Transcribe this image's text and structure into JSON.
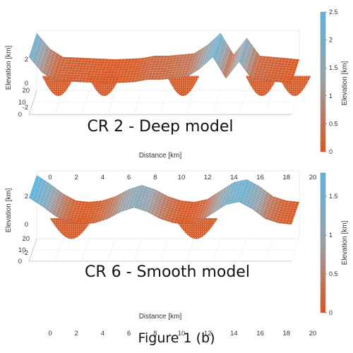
{
  "figure_caption": "Figure 1 (b)",
  "chart_data": [
    {
      "type": "surface",
      "overlay_label": "CR 2 - Deep model",
      "xlabel": "Distance [km]",
      "ylabel_elevation": "Elevation [km]",
      "x_ticks": [
        "0",
        "2",
        "4",
        "6",
        "8",
        "10",
        "12",
        "14",
        "16",
        "18",
        "20"
      ],
      "y_ticks": [
        "0",
        "10",
        "20"
      ],
      "z_ticks": [
        "2",
        "0",
        "-2"
      ],
      "colorbar": {
        "label": "Elevation [km]",
        "ticks": [
          "2.5",
          "2",
          "1.5",
          "1",
          "0.5",
          "0"
        ],
        "range": [
          0,
          2.5
        ],
        "colors": [
          "#d9541e",
          "#9aa0a6",
          "#5ab4de"
        ]
      },
      "surface_profile": {
        "x": [
          0,
          1,
          2,
          4,
          6,
          8,
          9,
          10,
          11,
          12,
          13,
          14,
          15,
          16,
          17,
          18,
          19,
          20
        ],
        "z": [
          2.2,
          0.9,
          0.2,
          0.1,
          0.0,
          0.1,
          0.3,
          0.3,
          0.4,
          0.5,
          1.2,
          2.2,
          0.4,
          1.8,
          0.3,
          0.2,
          0.1,
          0.0
        ]
      },
      "deep_bodies_x_km": [
        2,
        5.5,
        11.5,
        17.5,
        20
      ]
    },
    {
      "type": "surface",
      "overlay_label": "CR 6 - Smooth model",
      "xlabel": "Distance [km]",
      "ylabel_elevation": "Elevation [km]",
      "x_ticks": [
        "0",
        "2",
        "4",
        "6",
        "8",
        "10",
        "12",
        "14",
        "16",
        "18",
        "20"
      ],
      "y_ticks": [
        "0",
        "10",
        "20"
      ],
      "z_ticks": [
        "2",
        "0",
        "-2"
      ],
      "colorbar": {
        "label": "Elevation [km]",
        "ticks": [
          "1.5",
          "1",
          "0.5",
          "0"
        ],
        "range": [
          0,
          1.8
        ],
        "colors": [
          "#d9541e",
          "#9aa0a6",
          "#5ab4de"
        ]
      },
      "surface_profile": {
        "x": [
          0,
          1,
          2,
          3,
          4,
          5,
          6,
          7,
          8,
          9,
          10,
          11,
          12,
          13,
          14,
          15,
          16,
          17,
          18,
          19,
          20
        ],
        "z": [
          1.9,
          1.3,
          0.6,
          0.1,
          0.0,
          0.1,
          0.4,
          0.9,
          1.2,
          0.9,
          0.4,
          0.1,
          0.0,
          0.2,
          0.8,
          1.4,
          1.6,
          1.1,
          0.4,
          0.1,
          0.0
        ]
      },
      "deep_bodies_x_km": [
        3,
        12.5
      ]
    }
  ]
}
